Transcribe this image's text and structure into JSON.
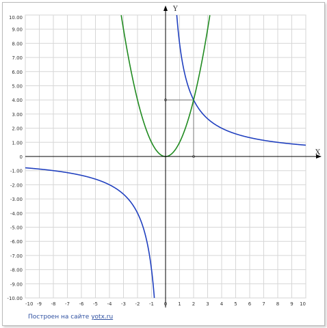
{
  "chart_data": {
    "type": "line",
    "title": "",
    "xlabel": "X",
    "ylabel": "Y",
    "xlim": [
      -10,
      10
    ],
    "ylim": [
      -10,
      10
    ],
    "grid": true,
    "x_tick_labels": [
      "-10",
      "-9",
      "-8",
      "-7",
      "-6",
      "-5",
      "-4",
      "-3",
      "-2",
      "-1",
      "0",
      "1",
      "2",
      "3",
      "4",
      "5",
      "6",
      "7",
      "8",
      "9",
      "10"
    ],
    "y_tick_labels": [
      "10.00",
      "9.00",
      "8.00",
      "7.00",
      "6.00",
      "5.00",
      "4.00",
      "3.00",
      "2.00",
      "1.00",
      "0",
      "-1.00",
      "-2.00",
      "-3.00",
      "-4.00",
      "-5.00",
      "-6.00",
      "-7.00",
      "-8.00",
      "-9.00",
      "-10.00"
    ],
    "series": [
      {
        "formula": "y = 8/x",
        "color": "#1f3fbf"
      },
      {
        "formula": "y = x^2",
        "color": "#1f8a1f"
      }
    ],
    "intersection": {
      "x": 2,
      "y": 4
    }
  },
  "footer": {
    "text": "Построен на сайте",
    "link": "yotx.ru"
  }
}
